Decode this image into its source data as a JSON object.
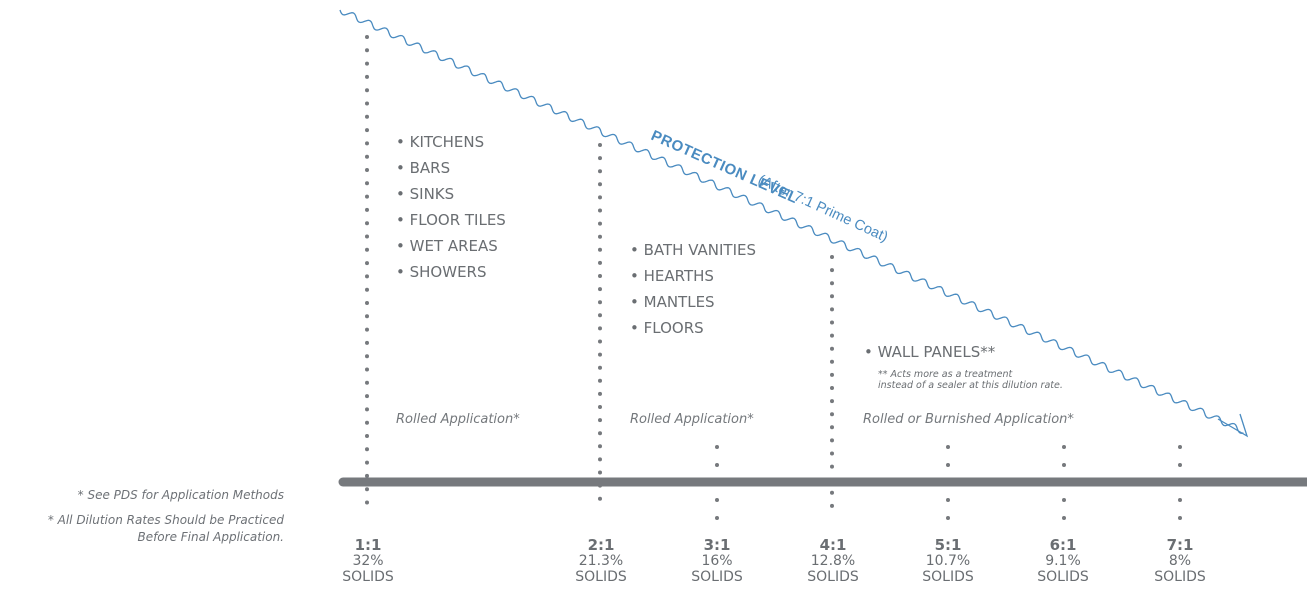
{
  "protection": {
    "title": "PROTECTION LEVEL",
    "subtitle": "(After 7:1 Prime Coat)",
    "color": "#4a8bc0"
  },
  "notes": [
    "* See PDS for Application Methods",
    "* All Dilution Rates Should be Practiced",
    "Before Final Application."
  ],
  "groups": [
    {
      "items": [
        "KITCHENS",
        "BARS",
        "SINKS",
        "FLOOR TILES",
        "WET AREAS",
        "SHOWERS"
      ],
      "method": "Rolled Application*"
    },
    {
      "items": [
        "BATH VANITIES",
        "HEARTHS",
        "MANTLES",
        "FLOORS"
      ],
      "method": "Rolled Application*"
    },
    {
      "items": [
        "WALL PANELS**"
      ],
      "method": "Rolled or Burnished Application*",
      "subnote": [
        "** Acts more as a treatment",
        "instead of a sealer at this dilution rate."
      ]
    }
  ],
  "dilutions": [
    {
      "ratio": "1:1",
      "percent": "32%",
      "label": "SOLIDS"
    },
    {
      "ratio": "2:1",
      "percent": "21.3%",
      "label": "SOLIDS"
    },
    {
      "ratio": "3:1",
      "percent": "16%",
      "label": "SOLIDS"
    },
    {
      "ratio": "4:1",
      "percent": "12.8%",
      "label": "SOLIDS"
    },
    {
      "ratio": "5:1",
      "percent": "10.7%",
      "label": "SOLIDS"
    },
    {
      "ratio": "6:1",
      "percent": "9.1%",
      "label": "SOLIDS"
    },
    {
      "ratio": "7:1",
      "percent": "8%",
      "label": "SOLIDS"
    }
  ],
  "colors": {
    "bar": "#76797d",
    "dots": "#76797d",
    "text": "#6a6e72"
  }
}
